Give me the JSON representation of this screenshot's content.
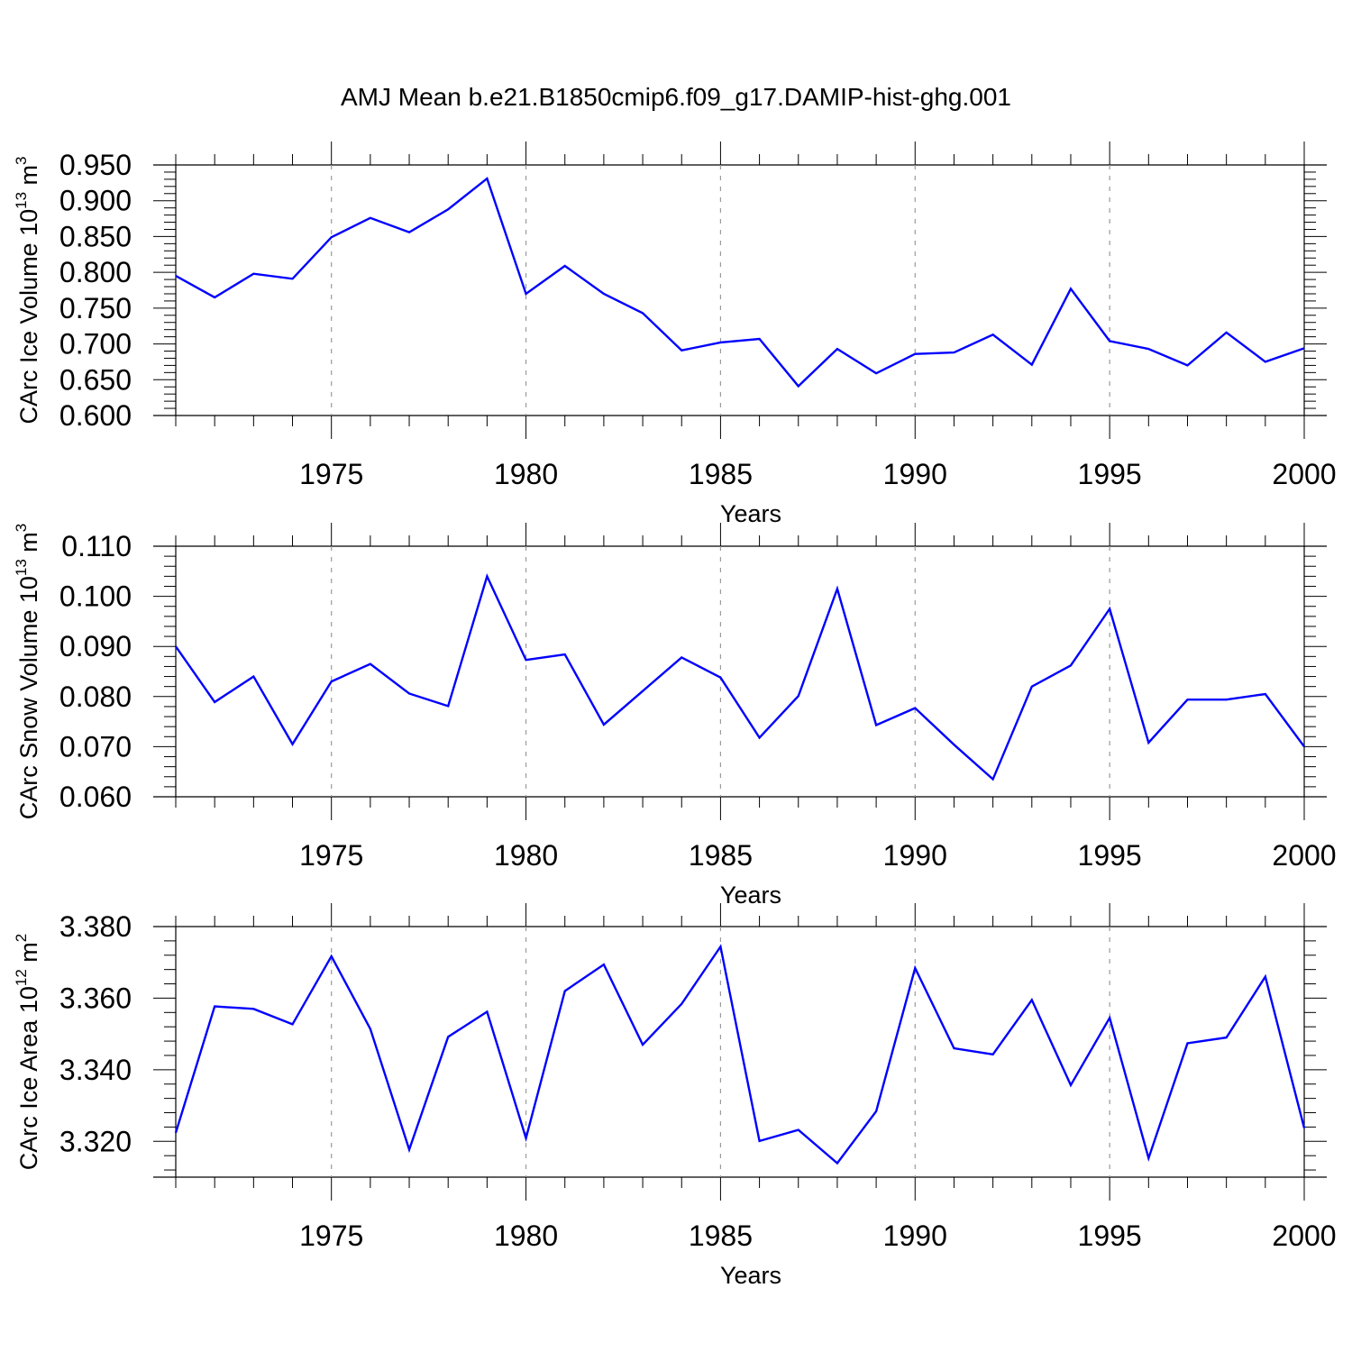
{
  "chart_data": [
    {
      "type": "line",
      "title": "AMJ Mean b.e21.B1850cmip6.f09_g17.DAMIP-hist-ghg.001",
      "xlabel": "Years",
      "ylabel": "CArc Ice Volume 10",
      "ylabel_exp": "13",
      "ylabel_unit": " m",
      "ylabel_unit_exp": "3",
      "xlim": [
        1971,
        2000
      ],
      "ylim": [
        0.6,
        0.95
      ],
      "yticks": [
        0.6,
        0.65,
        0.7,
        0.75,
        0.8,
        0.85,
        0.9,
        0.95
      ],
      "ytick_labels": [
        "0.600",
        "0.650",
        "0.700",
        "0.750",
        "0.800",
        "0.850",
        "0.900",
        "0.950"
      ],
      "xticks": [
        1975,
        1980,
        1985,
        1990,
        1995,
        2000
      ],
      "xtick_labels": [
        "1975",
        "1980",
        "1985",
        "1990",
        "1995",
        "2000"
      ],
      "line_color": "#0000ff",
      "x": [
        1971,
        1972,
        1973,
        1974,
        1975,
        1976,
        1977,
        1978,
        1979,
        1980,
        1981,
        1982,
        1983,
        1984,
        1985,
        1986,
        1987,
        1988,
        1989,
        1990,
        1991,
        1992,
        1993,
        1994,
        1995,
        1996,
        1997,
        1998,
        1999,
        2000
      ],
      "y": [
        0.795,
        0.765,
        0.798,
        0.791,
        0.849,
        0.876,
        0.856,
        0.888,
        0.931,
        0.77,
        0.809,
        0.77,
        0.743,
        0.691,
        0.702,
        0.707,
        0.641,
        0.693,
        0.659,
        0.686,
        0.688,
        0.713,
        0.671,
        0.777,
        0.704,
        0.693,
        0.67,
        0.716,
        0.675,
        0.694
      ]
    },
    {
      "type": "line",
      "xlabel": "Years",
      "ylabel": "CArc Snow Volume 10",
      "ylabel_exp": "13",
      "ylabel_unit": " m",
      "ylabel_unit_exp": "3",
      "xlim": [
        1971,
        2000
      ],
      "ylim": [
        0.06,
        0.11
      ],
      "yticks": [
        0.06,
        0.07,
        0.08,
        0.09,
        0.1,
        0.11
      ],
      "ytick_labels": [
        "0.060",
        "0.070",
        "0.080",
        "0.090",
        "0.100",
        "0.110"
      ],
      "xticks": [
        1975,
        1980,
        1985,
        1990,
        1995,
        2000
      ],
      "xtick_labels": [
        "1975",
        "1980",
        "1985",
        "1990",
        "1995",
        "2000"
      ],
      "line_color": "#0000ff",
      "x": [
        1971,
        1972,
        1973,
        1974,
        1975,
        1976,
        1977,
        1978,
        1979,
        1980,
        1981,
        1982,
        1983,
        1984,
        1985,
        1986,
        1987,
        1988,
        1989,
        1990,
        1991,
        1992,
        1993,
        1994,
        1995,
        1996,
        1997,
        1998,
        1999,
        2000
      ],
      "y": [
        0.09,
        0.0789,
        0.084,
        0.0705,
        0.083,
        0.0865,
        0.0806,
        0.0781,
        0.104,
        0.0873,
        0.0884,
        0.0744,
        0.0811,
        0.0878,
        0.0838,
        0.0718,
        0.0801,
        0.1015,
        0.0743,
        0.0777,
        0.0704,
        0.0635,
        0.082,
        0.0862,
        0.0975,
        0.0708,
        0.0794,
        0.0794,
        0.0805,
        0.07
      ]
    },
    {
      "type": "line",
      "xlabel": "Years",
      "ylabel": "CArc Ice Area 10",
      "ylabel_exp": "12",
      "ylabel_unit": " m",
      "ylabel_unit_exp": "2",
      "xlim": [
        1971,
        2000
      ],
      "ylim": [
        3.31,
        3.38
      ],
      "yticks": [
        3.32,
        3.34,
        3.36,
        3.38
      ],
      "ytick_labels": [
        "3.320",
        "3.340",
        "3.360",
        "3.380"
      ],
      "xticks": [
        1975,
        1980,
        1985,
        1990,
        1995,
        2000
      ],
      "xtick_labels": [
        "1975",
        "1980",
        "1985",
        "1990",
        "1995",
        "2000"
      ],
      "line_color": "#0000ff",
      "x": [
        1971,
        1972,
        1973,
        1974,
        1975,
        1976,
        1977,
        1978,
        1979,
        1980,
        1981,
        1982,
        1983,
        1984,
        1985,
        1986,
        1987,
        1988,
        1989,
        1990,
        1991,
        1992,
        1993,
        1994,
        1995,
        1996,
        1997,
        1998,
        1999,
        2000
      ],
      "y": [
        3.3224,
        3.3577,
        3.357,
        3.3527,
        3.3717,
        3.3514,
        3.3177,
        3.3492,
        3.3562,
        3.3209,
        3.362,
        3.3694,
        3.347,
        3.3584,
        3.3744,
        3.3201,
        3.3232,
        3.3139,
        3.3284,
        3.3684,
        3.346,
        3.3443,
        3.3595,
        3.3357,
        3.3545,
        3.3153,
        3.3474,
        3.349,
        3.366,
        3.3237
      ]
    }
  ]
}
